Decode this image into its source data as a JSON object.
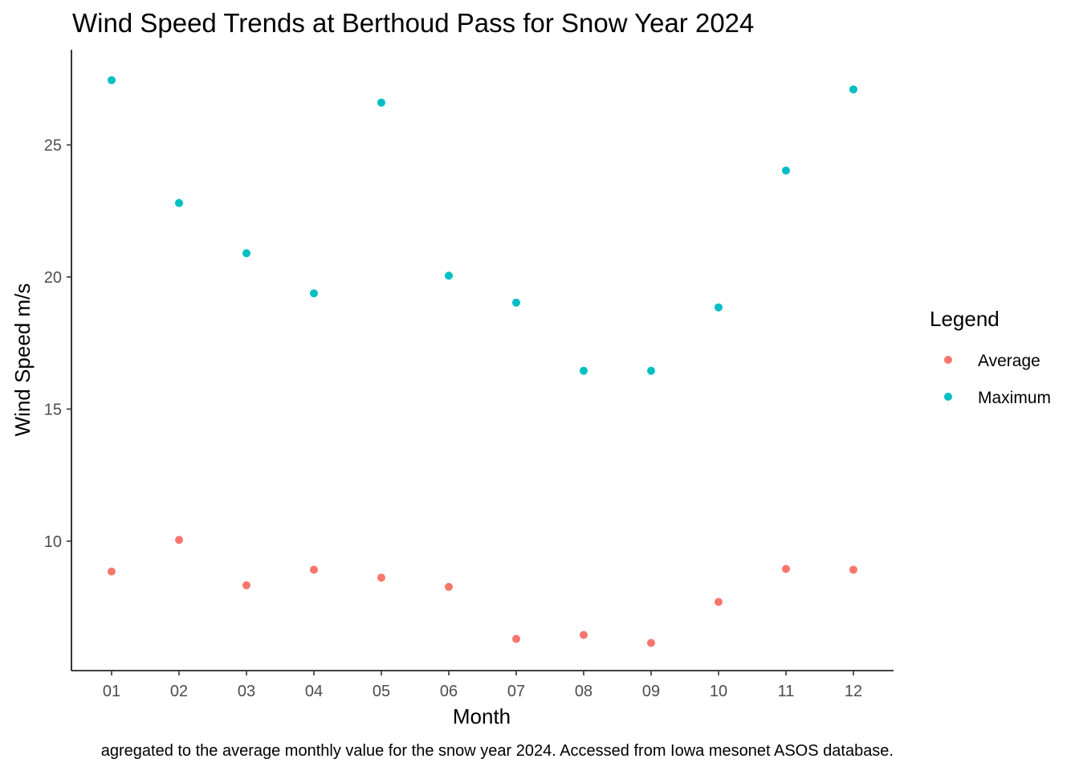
{
  "chart_data": {
    "type": "scatter",
    "title": "Wind Speed Trends at Berthoud Pass for Snow Year 2024",
    "xlabel": "Month",
    "ylabel": "Wind Speed m/s",
    "caption": "agregated to the average monthly value for the snow year 2024. Accessed from Iowa mesonet ASOS database.",
    "categories": [
      "01",
      "02",
      "03",
      "04",
      "05",
      "06",
      "07",
      "08",
      "09",
      "10",
      "11",
      "12"
    ],
    "yticks": [
      10,
      15,
      20,
      25
    ],
    "ylim": [
      5.1,
      28.6
    ],
    "grid": false,
    "legend": {
      "title": "Legend",
      "position": "right"
    },
    "series": [
      {
        "name": "Average",
        "color": "#F8766D",
        "values": [
          8.85,
          10.05,
          8.33,
          8.92,
          8.62,
          8.27,
          6.3,
          6.45,
          6.15,
          7.7,
          8.95,
          8.92
        ]
      },
      {
        "name": "Maximum",
        "color": "#00BFC4",
        "values": [
          27.45,
          22.8,
          20.9,
          19.38,
          26.6,
          20.05,
          19.03,
          16.45,
          16.45,
          18.85,
          24.03,
          27.1
        ]
      }
    ]
  }
}
